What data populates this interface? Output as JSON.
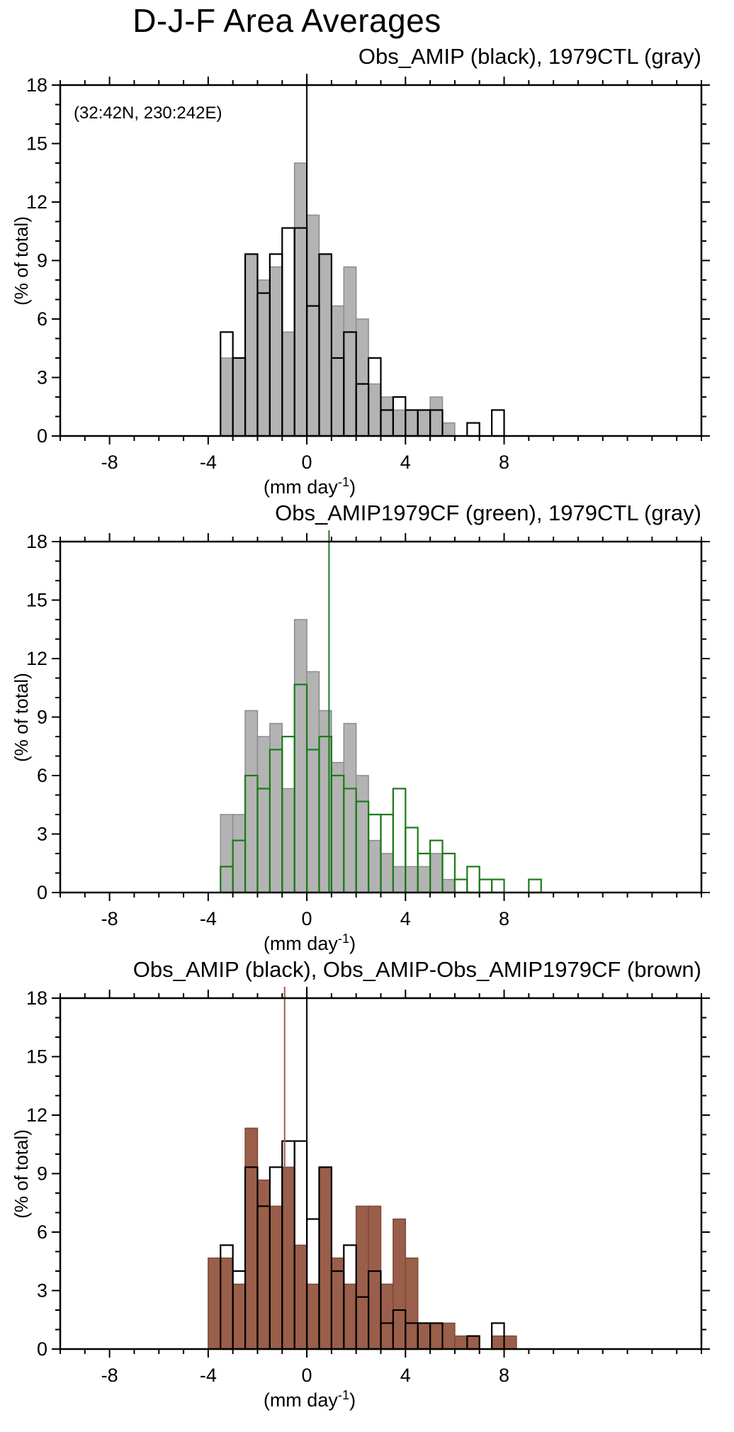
{
  "title": "D-J-F Area Averages",
  "chart_data": {
    "type": "bar",
    "subtype": "overlaid-histograms",
    "axes": {
      "xlabel_prefix": "(mm day",
      "xlabel_sup": "-1",
      "xlabel_suffix": ")",
      "ylabel": "(% of total)",
      "xlim": [
        -10,
        16
      ],
      "ylim": [
        0,
        18
      ],
      "xticks_major": [
        -8,
        -4,
        0,
        4,
        8
      ],
      "xtick_minor_step": 1,
      "yticks_major": [
        0,
        3,
        6,
        9,
        12,
        15,
        18
      ],
      "ytick_minor_step": 1,
      "bin_width": 0.5,
      "grid": "off"
    },
    "colors": {
      "gray": "#b3b3b3",
      "black": "#000000",
      "green": "#1a7a1a",
      "brown": "#9a5f4a"
    },
    "panels": [
      {
        "subtitle": "Obs_AMIP (black), 1979CTL (gray)",
        "annotation": "(32:42N, 230:242E)",
        "series": [
          {
            "name": "1979CTL",
            "style": "filled",
            "fill": "#b3b3b3",
            "edge": "#8c8c8c",
            "bin_start": -3.5,
            "bin_width": 0.5,
            "values": [
              4.0,
              4.0,
              9.33,
              8.0,
              8.67,
              5.33,
              14.0,
              11.33,
              9.33,
              6.67,
              8.67,
              6.0,
              2.67,
              2.0,
              1.33,
              1.33,
              1.33,
              2.0,
              0.67
            ]
          },
          {
            "name": "Obs_AMIP",
            "style": "outline",
            "color": "#000000",
            "bin_start": -3.5,
            "bin_width": 0.5,
            "values": [
              5.33,
              4.0,
              9.33,
              7.33,
              9.33,
              10.67,
              10.67,
              6.67,
              9.33,
              4.0,
              5.33,
              2.67,
              4.0,
              1.33,
              2.0,
              1.33,
              1.33,
              1.33,
              0,
              0,
              0.67,
              0,
              1.33
            ]
          }
        ],
        "vlines": [
          {
            "x": 0.0,
            "color": "#000000"
          }
        ]
      },
      {
        "subtitle": "Obs_AMIP1979CF (green), 1979CTL (gray)",
        "series": [
          {
            "name": "1979CTL",
            "style": "filled",
            "fill": "#b3b3b3",
            "edge": "#8c8c8c",
            "bin_start": -3.5,
            "bin_width": 0.5,
            "values": [
              4.0,
              4.0,
              9.33,
              8.0,
              8.67,
              5.33,
              14.0,
              11.33,
              9.33,
              6.67,
              8.67,
              6.0,
              2.67,
              2.0,
              1.33,
              1.33,
              1.33,
              2.0,
              0.67
            ]
          },
          {
            "name": "Obs_AMIP1979CF",
            "style": "outline",
            "color": "#1a7a1a",
            "bin_start": -3.5,
            "bin_width": 0.5,
            "values": [
              1.33,
              2.67,
              6.0,
              5.33,
              7.33,
              8.0,
              10.67,
              7.33,
              8.0,
              6.0,
              5.33,
              4.67,
              4.0,
              4.0,
              5.33,
              3.33,
              2.0,
              2.67,
              2.0,
              0.67,
              1.33,
              0.67,
              0.67,
              0,
              0,
              0.67
            ]
          }
        ],
        "vlines": [
          {
            "x": 0.9,
            "color": "#1a7a1a"
          }
        ]
      },
      {
        "subtitle": "Obs_AMIP (black), Obs_AMIP-Obs_AMIP1979CF (brown)",
        "series": [
          {
            "name": "Obs_AMIP-Obs_AMIP1979CF",
            "style": "filled",
            "fill": "#9a5f4a",
            "edge": "#7d4a38",
            "bin_start": -4.0,
            "bin_width": 0.5,
            "values": [
              4.67,
              4.67,
              3.33,
              11.33,
              8.67,
              7.33,
              9.33,
              5.33,
              3.33,
              9.33,
              4.67,
              3.33,
              7.33,
              7.33,
              3.33,
              6.67,
              4.67,
              1.33,
              1.33,
              1.33,
              0.67,
              0.67,
              0,
              0.67,
              0.67
            ]
          },
          {
            "name": "Obs_AMIP",
            "style": "outline",
            "color": "#000000",
            "bin_start": -3.5,
            "bin_width": 0.5,
            "values": [
              5.33,
              4.0,
              9.33,
              7.33,
              9.33,
              10.67,
              10.67,
              6.67,
              9.33,
              4.0,
              5.33,
              2.67,
              4.0,
              1.33,
              2.0,
              1.33,
              1.33,
              1.33,
              0,
              0,
              0.67,
              0,
              1.33
            ]
          }
        ],
        "vlines": [
          {
            "x": -0.9,
            "color": "#9a5f4a"
          },
          {
            "x": 0.0,
            "color": "#000000"
          }
        ]
      }
    ]
  }
}
